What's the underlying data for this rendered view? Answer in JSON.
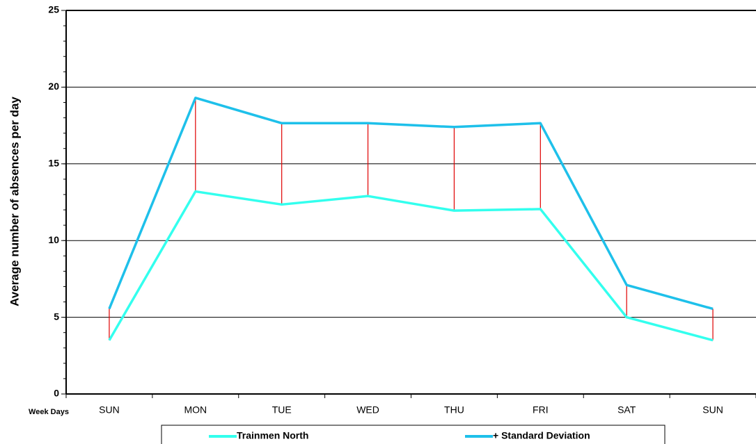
{
  "chart_data": {
    "type": "line",
    "y_label": "Average number of absences per day",
    "x_label": "Week Days",
    "categories": [
      "SUN",
      "MON",
      "TUE",
      "WED",
      "THU",
      "FRI",
      "SAT",
      "SUN"
    ],
    "series": [
      {
        "name": "Trainmen North",
        "color": "#33ffee",
        "values": [
          3.5,
          13.2,
          12.35,
          12.9,
          11.95,
          12.05,
          5.0,
          3.5
        ]
      },
      {
        "name": "+ Standard Deviation",
        "color": "#1ec0ea",
        "values": [
          5.55,
          19.3,
          17.65,
          17.65,
          17.4,
          17.65,
          7.1,
          5.55
        ]
      }
    ],
    "drop_line_color": "#e00000",
    "ylim": [
      0,
      25
    ],
    "yticks": [
      0,
      5,
      10,
      15,
      20,
      25
    ],
    "grid": true
  }
}
